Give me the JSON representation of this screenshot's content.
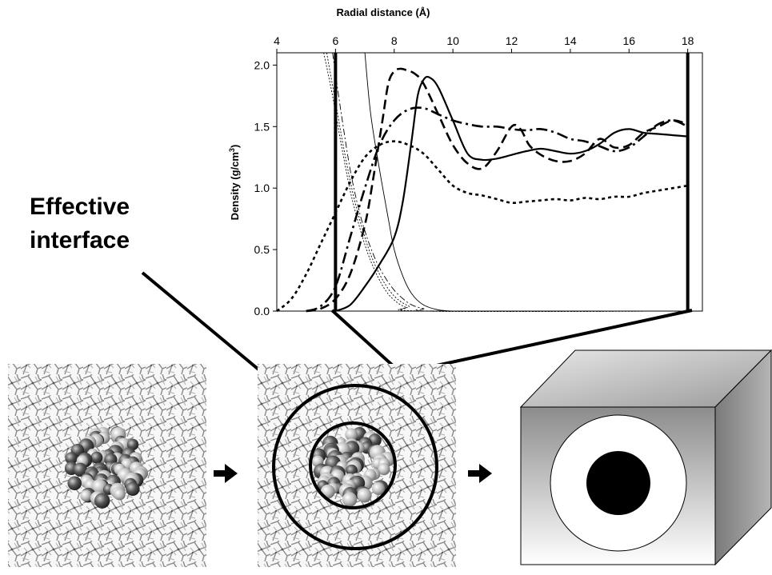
{
  "annotation": {
    "label_line1": "Effective",
    "label_line2": "interface"
  },
  "chart_data": {
    "type": "line",
    "xlabel": "Radial distance (Å)",
    "ylabel": "Density (g/cm³)",
    "xlim": [
      4,
      18.5
    ],
    "ylim": [
      0,
      2.1
    ],
    "xticks": [
      4,
      6,
      8,
      10,
      12,
      14,
      16,
      18
    ],
    "xtick_labels": [
      "4",
      "6",
      "8",
      "10",
      "12",
      "14",
      "16",
      "18"
    ],
    "yticks": [
      0,
      0.5,
      1.0,
      1.5,
      2.0
    ],
    "ytick_labels": [
      "0.0",
      "0.5",
      "1.0",
      "1.5",
      "2.0"
    ],
    "grid": false,
    "legend": "none",
    "markers": [
      6,
      18
    ],
    "series": [
      {
        "style": "solid",
        "x": [
          6.0,
          6.5,
          7.0,
          7.5,
          8.0,
          8.3,
          8.6,
          8.8,
          9.0,
          9.2,
          9.5,
          10.0,
          10.5,
          11.0,
          11.5,
          12.0,
          12.5,
          13.0,
          13.5,
          14.0,
          14.5,
          15.0,
          15.5,
          16.0,
          16.5,
          17.0,
          17.5,
          18.0
        ],
        "y": [
          0.0,
          0.05,
          0.2,
          0.38,
          0.6,
          0.9,
          1.4,
          1.75,
          1.88,
          1.9,
          1.82,
          1.55,
          1.28,
          1.23,
          1.24,
          1.27,
          1.3,
          1.32,
          1.3,
          1.28,
          1.3,
          1.36,
          1.45,
          1.48,
          1.45,
          1.44,
          1.43,
          1.42
        ]
      },
      {
        "style": "dashed",
        "x": [
          5.0,
          5.5,
          6.0,
          6.5,
          7.0,
          7.3,
          7.6,
          7.8,
          8.0,
          8.2,
          8.4,
          8.7,
          9.0,
          9.5,
          10.0,
          10.5,
          11.0,
          11.5,
          12.0,
          12.3,
          12.6,
          13.0,
          13.5,
          14.0,
          14.5,
          15.0,
          15.5,
          16.0,
          16.5,
          17.0,
          17.5,
          18.0
        ],
        "y": [
          0.0,
          0.02,
          0.1,
          0.3,
          0.7,
          1.1,
          1.55,
          1.85,
          1.95,
          1.97,
          1.96,
          1.93,
          1.85,
          1.6,
          1.35,
          1.2,
          1.16,
          1.3,
          1.5,
          1.48,
          1.35,
          1.27,
          1.22,
          1.22,
          1.28,
          1.4,
          1.33,
          1.35,
          1.45,
          1.5,
          1.55,
          1.52
        ]
      },
      {
        "style": "dash-dot",
        "x": [
          5.0,
          5.5,
          6.0,
          6.5,
          7.0,
          7.5,
          8.0,
          8.5,
          9.0,
          9.5,
          10.0,
          10.5,
          11.0,
          11.5,
          12.0,
          12.5,
          13.0,
          13.5,
          14.0,
          14.5,
          15.0,
          15.5,
          16.0,
          16.5,
          17.0,
          17.5,
          18.0
        ],
        "y": [
          0.0,
          0.04,
          0.2,
          0.6,
          1.0,
          1.35,
          1.55,
          1.64,
          1.65,
          1.6,
          1.55,
          1.52,
          1.5,
          1.5,
          1.48,
          1.47,
          1.48,
          1.45,
          1.4,
          1.38,
          1.34,
          1.3,
          1.33,
          1.42,
          1.52,
          1.55,
          1.5
        ]
      },
      {
        "style": "dotted",
        "x": [
          4.0,
          4.5,
          5.0,
          5.5,
          6.0,
          6.5,
          7.0,
          7.5,
          8.0,
          8.5,
          9.0,
          9.5,
          10.0,
          10.5,
          11.0,
          11.5,
          12.0,
          12.5,
          13.0,
          13.5,
          14.0,
          14.5,
          15.0,
          15.5,
          16.0,
          16.5,
          17.0,
          17.5,
          18.0
        ],
        "y": [
          0.0,
          0.1,
          0.3,
          0.55,
          0.8,
          1.05,
          1.25,
          1.35,
          1.38,
          1.35,
          1.28,
          1.15,
          1.02,
          0.96,
          0.94,
          0.91,
          0.88,
          0.89,
          0.9,
          0.91,
          0.9,
          0.92,
          0.91,
          0.93,
          0.93,
          0.96,
          0.98,
          1.0,
          1.02
        ]
      },
      {
        "style": "thin-solid",
        "x": [
          7.0,
          7.2,
          7.5,
          7.8,
          8.0,
          8.3,
          8.6,
          9.0,
          9.5,
          10.0,
          10.5,
          18.0
        ],
        "y": [
          2.1,
          1.6,
          1.15,
          0.75,
          0.5,
          0.28,
          0.14,
          0.05,
          0.01,
          0.0,
          0.0,
          0.0
        ]
      },
      {
        "style": "thin-dashdot",
        "x": [
          5.9,
          6.2,
          6.5,
          6.8,
          7.1,
          7.4,
          7.7,
          8.0,
          8.3,
          8.6,
          9.0,
          9.5,
          18.0
        ],
        "y": [
          2.1,
          1.6,
          1.15,
          0.82,
          0.58,
          0.4,
          0.27,
          0.17,
          0.1,
          0.05,
          0.02,
          0.0,
          0.0
        ]
      },
      {
        "style": "thin-dotted",
        "x": [
          5.7,
          6.0,
          6.3,
          6.6,
          6.9,
          7.2,
          7.5,
          7.8,
          8.1,
          8.5,
          9.0,
          18.0
        ],
        "y": [
          2.1,
          1.7,
          1.3,
          0.95,
          0.68,
          0.46,
          0.3,
          0.18,
          0.1,
          0.04,
          0.0,
          0.0
        ]
      },
      {
        "style": "thin-dotted",
        "x": [
          5.6,
          5.9,
          6.2,
          6.5,
          6.8,
          7.1,
          7.4,
          7.7,
          8.0,
          8.4,
          9.0,
          18.0
        ],
        "y": [
          2.1,
          1.75,
          1.35,
          0.98,
          0.7,
          0.47,
          0.3,
          0.17,
          0.09,
          0.03,
          0.0,
          0.0
        ]
      }
    ]
  }
}
